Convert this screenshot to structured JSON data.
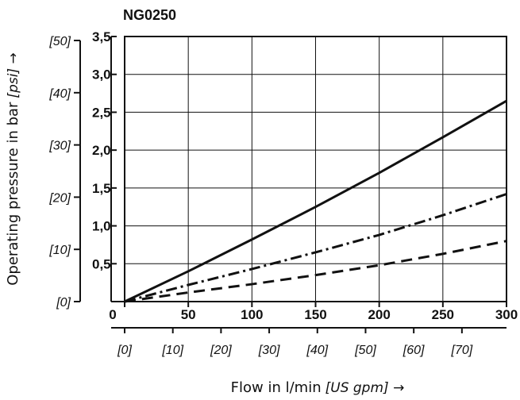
{
  "chart_data": {
    "type": "line",
    "title": "NG0250",
    "xlabel": "Flow in l/min",
    "xlabel_secondary": "[US gpm] →",
    "ylabel": "Operating pressure in bar",
    "ylabel_secondary": "[psi] →",
    "xlim": [
      0,
      300
    ],
    "ylim": [
      0,
      3.5
    ],
    "x_ticks": [
      "0",
      "50",
      "100",
      "150",
      "200",
      "250",
      "300"
    ],
    "y_ticks": [
      "0,5",
      "1,0",
      "1,5",
      "2,0",
      "2,5",
      "3,0",
      "3,5"
    ],
    "x_secondary_ticks": [
      "[0]",
      "[10]",
      "[20]",
      "[30]",
      "[40]",
      "[50]",
      "[60]",
      "[70]"
    ],
    "y_secondary_ticks": [
      "[0]",
      "[10]",
      "[20]",
      "[30]",
      "[40]",
      "[50]"
    ],
    "grid": true,
    "legend": "none",
    "series": [
      {
        "style": "solid",
        "x": [
          0,
          50,
          100,
          150,
          200,
          250,
          300
        ],
        "y": [
          0,
          0.4,
          0.82,
          1.25,
          1.7,
          2.17,
          2.65
        ]
      },
      {
        "style": "dash-dot",
        "x": [
          0,
          50,
          100,
          150,
          200,
          250,
          300
        ],
        "y": [
          0,
          0.22,
          0.43,
          0.65,
          0.88,
          1.14,
          1.42
        ]
      },
      {
        "style": "dashed",
        "x": [
          0,
          50,
          100,
          150,
          200,
          250,
          300
        ],
        "y": [
          0,
          0.12,
          0.23,
          0.35,
          0.48,
          0.63,
          0.8
        ]
      }
    ]
  }
}
